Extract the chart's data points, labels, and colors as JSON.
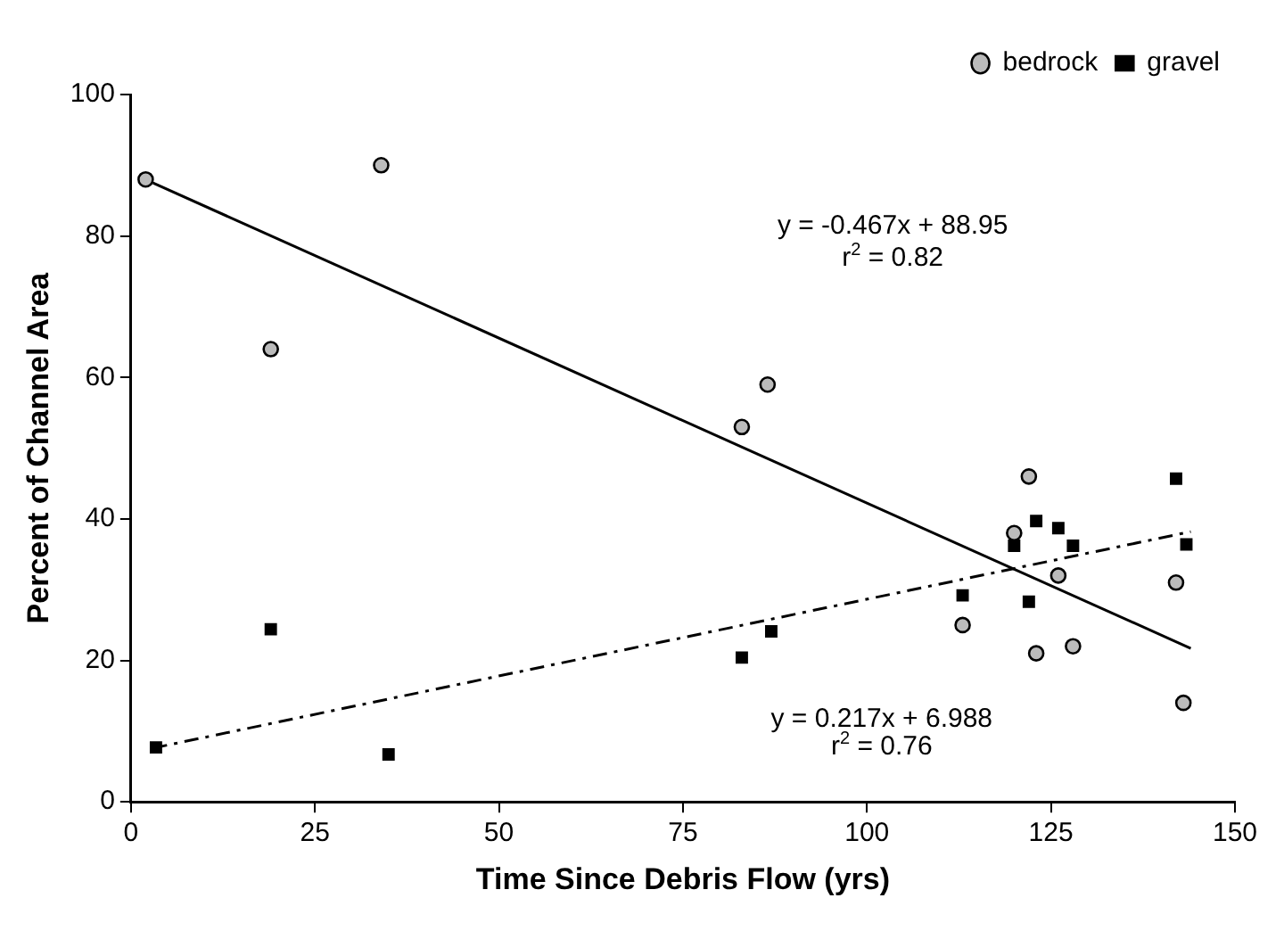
{
  "chart_data": {
    "type": "scatter",
    "xlabel": "Time Since Debris Flow (yrs)",
    "ylabel": "Percent of Channel Area",
    "xlim": [
      0,
      150
    ],
    "xticks": [
      0,
      25,
      50,
      75,
      100,
      125,
      150
    ],
    "ylim": [
      0,
      100
    ],
    "yticks": [
      0,
      20,
      40,
      60,
      80,
      100
    ],
    "grid": false,
    "legend": "top right",
    "series": [
      {
        "name": "bedrock",
        "marker": "circle",
        "color": "#000000",
        "x": [
          2,
          34,
          19,
          86.5,
          83,
          122,
          120,
          126,
          142,
          113,
          123,
          128,
          143
        ],
        "values": [
          88,
          90,
          64,
          59,
          53,
          46,
          38,
          32,
          31,
          25,
          21,
          22,
          14
        ]
      },
      {
        "name": "gravel",
        "marker": "square",
        "color": "#000000",
        "x": [
          3.4,
          19,
          35,
          83,
          87,
          113,
          122,
          120,
          123,
          126,
          128,
          142,
          143.4
        ],
        "values": [
          7.7,
          24.4,
          6.7,
          20.4,
          24.1,
          29.2,
          28.3,
          36.2,
          39.7,
          38.7,
          36.2,
          45.7,
          36.4
        ]
      },
      {
        "type": "line",
        "line_style": "solid",
        "marker": "none",
        "color": "#000000",
        "x": [
          3,
          144
        ],
        "values": [
          87.5,
          21.7
        ]
      },
      {
        "type": "line",
        "line_style": "dashed",
        "marker": "none",
        "color": "#000000",
        "x": [
          3,
          144
        ],
        "values": [
          7.6,
          38.2
        ]
      }
    ],
    "annotations": [
      "y = -0.467x + 88.95",
      "r$^{2}$ = 0.82",
      "y = 0.217x + 6.988",
      "r$^{2}$ = 0.76"
    ]
  }
}
